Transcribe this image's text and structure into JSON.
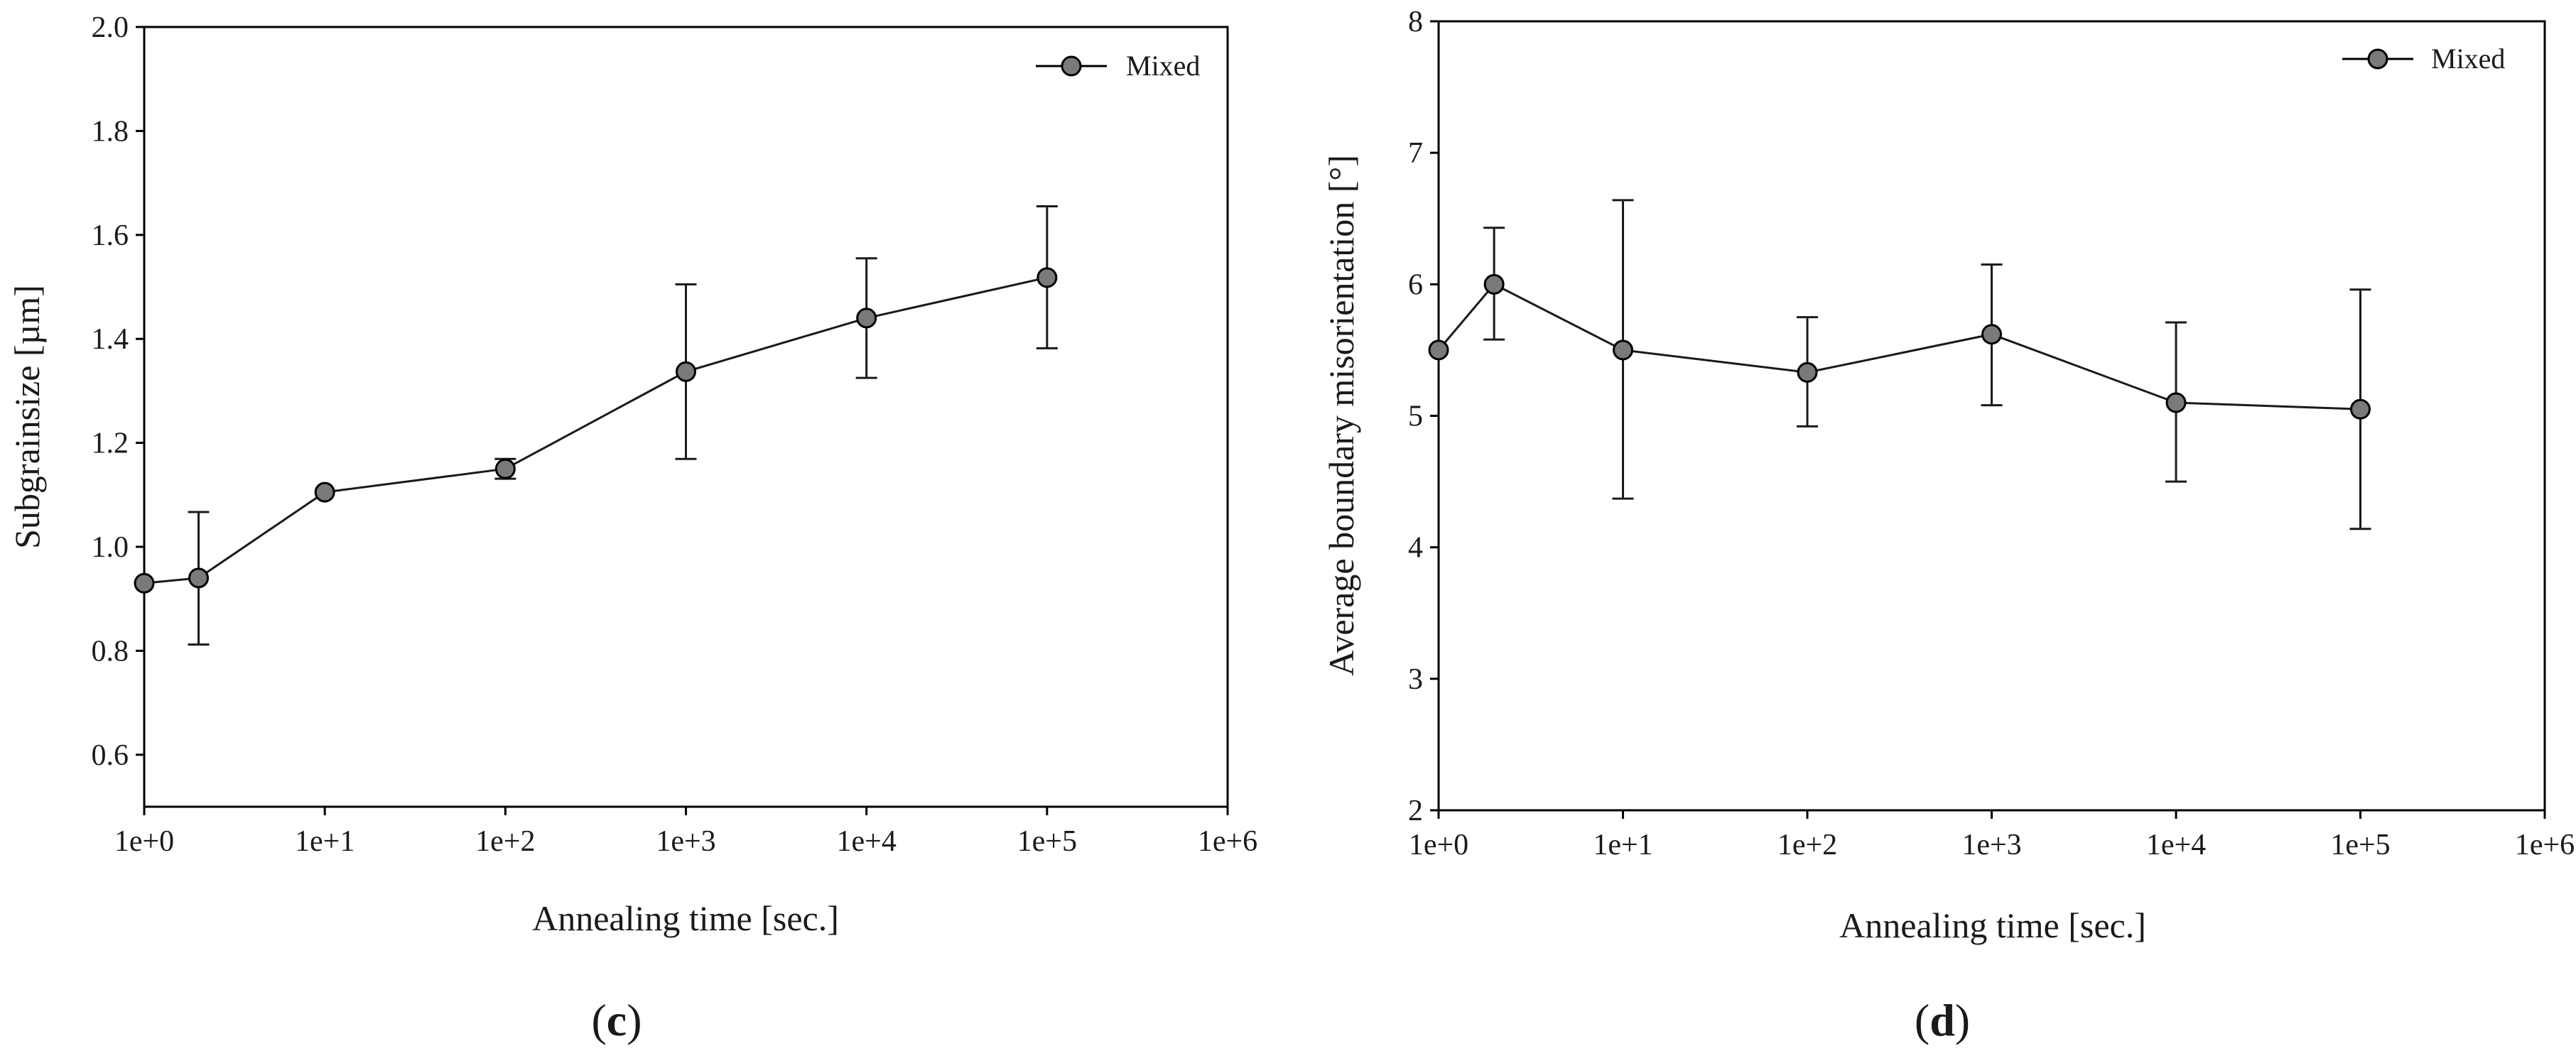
{
  "colors": {
    "axis": "#000000",
    "line": "#1a1a1a",
    "marker_fill": "#7a7a7a",
    "marker_stroke": "#000000"
  },
  "chart_data": [
    {
      "panel": "c",
      "panel_label_open": "(",
      "panel_label_letter": "c",
      "panel_label_close": ")",
      "type": "line",
      "x_scale": "log",
      "xlabel": "Annealing time [sec.]",
      "ylabel": "Subgrainsize [µm]",
      "xlim": [
        1,
        1000000
      ],
      "ylim": [
        0.5,
        2.0
      ],
      "x_ticks": [
        1,
        10,
        100,
        1000,
        10000,
        100000,
        1000000
      ],
      "x_tick_labels": [
        "1e+0",
        "1e+1",
        "1e+2",
        "1e+3",
        "1e+4",
        "1e+5",
        "1e+6"
      ],
      "y_ticks": [
        0.6,
        0.8,
        1.0,
        1.2,
        1.4,
        1.6,
        1.8,
        2.0
      ],
      "y_tick_labels": [
        "0.6",
        "0.8",
        "1.0",
        "1.2",
        "1.4",
        "1.6",
        "1.8",
        "2.0"
      ],
      "legend_position": "top-right",
      "grid": false,
      "series": [
        {
          "name": "Mixed",
          "x": [
            1,
            2,
            10,
            100,
            1000,
            10000,
            100000
          ],
          "y": [
            0.93,
            0.94,
            1.105,
            1.15,
            1.337,
            1.44,
            1.518
          ],
          "err_low": [
            null,
            0.812,
            null,
            1.131,
            1.169,
            1.325,
            1.382
          ],
          "err_high": [
            null,
            1.067,
            null,
            1.169,
            1.505,
            1.555,
            1.655
          ]
        }
      ]
    },
    {
      "panel": "d",
      "panel_label_open": "(",
      "panel_label_letter": "d",
      "panel_label_close": ")",
      "type": "line",
      "x_scale": "log",
      "xlabel": "Annealing time [sec.]",
      "ylabel": "Average boundary misorientation [°]",
      "xlim": [
        1,
        1000000
      ],
      "ylim": [
        2,
        8
      ],
      "x_ticks": [
        1,
        10,
        100,
        1000,
        10000,
        100000,
        1000000
      ],
      "x_tick_labels": [
        "1e+0",
        "1e+1",
        "1e+2",
        "1e+3",
        "1e+4",
        "1e+5",
        "1e+6"
      ],
      "y_ticks": [
        2,
        3,
        4,
        5,
        6,
        7,
        8
      ],
      "y_tick_labels": [
        "2",
        "3",
        "4",
        "5",
        "6",
        "7",
        "8"
      ],
      "legend_position": "top-right",
      "grid": false,
      "series": [
        {
          "name": "Mixed",
          "x": [
            1,
            2,
            10,
            100,
            1000,
            10000,
            100000
          ],
          "y": [
            5.5,
            6.0,
            5.5,
            5.33,
            5.62,
            5.1,
            5.05
          ],
          "err_low": [
            null,
            5.58,
            4.37,
            4.92,
            5.08,
            4.5,
            4.14
          ],
          "err_high": [
            null,
            6.43,
            6.64,
            5.75,
            6.15,
            5.71,
            5.96
          ]
        }
      ]
    }
  ]
}
